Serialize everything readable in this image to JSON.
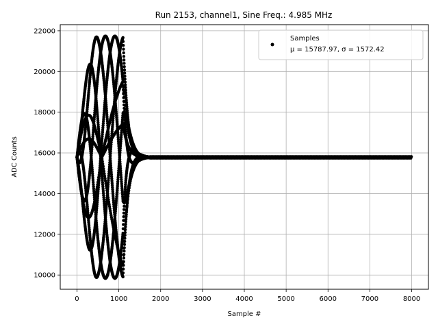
{
  "chart_data": {
    "type": "scatter",
    "title": "Run 2153, channel1, Sine Freq.: 4.985 MHz",
    "xlabel": "Sample #",
    "ylabel": "ADC Counts",
    "xlim": [
      -400,
      8400
    ],
    "ylim": [
      9300,
      22300
    ],
    "x_ticks": [
      0,
      1000,
      2000,
      3000,
      4000,
      5000,
      6000,
      7000,
      8000
    ],
    "x_tick_labels": [
      "0",
      "1000",
      "2000",
      "3000",
      "4000",
      "5000",
      "6000",
      "7000",
      "8000"
    ],
    "y_ticks": [
      10000,
      12000,
      14000,
      16000,
      18000,
      20000,
      22000
    ],
    "y_tick_labels": [
      "10000",
      "12000",
      "14000",
      "16000",
      "18000",
      "20000",
      "22000"
    ],
    "grid": true,
    "legend_position": "top-right",
    "series": [
      {
        "name": "Samples",
        "legend_stats": "μ = 15787.97, σ = 1572.42",
        "color": "#000000",
        "marker": "dot",
        "baseline": 15787.97,
        "burst": {
          "x_start": 0,
          "x_peak_start": 500,
          "x_peak_end": 1100,
          "x_decay_end": 1750,
          "peak_amplitude": 5950,
          "envelope_cycle": 1360,
          "envelope_phases": [
            0,
            1.047,
            2.094
          ]
        },
        "flat_x_range": [
          1750,
          8000
        ],
        "min": 9800,
        "max": 21750
      }
    ]
  }
}
